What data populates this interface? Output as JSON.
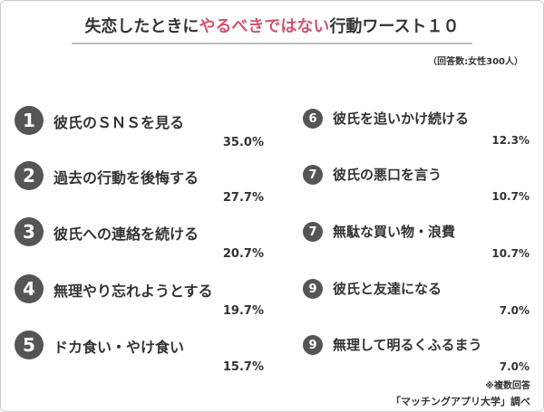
{
  "header": {
    "title_before": "失恋したときに",
    "title_highlight": "やるべきではない",
    "title_after": "行動ワースト１０",
    "subtitle": "（回答数:女性300人）"
  },
  "left": [
    {
      "rank": "1",
      "label": "彼氏のＳＮＳを見る",
      "value": "35.0%"
    },
    {
      "rank": "2",
      "label": "過去の行動を後悔する",
      "value": "27.7%"
    },
    {
      "rank": "3",
      "label": "彼氏への連絡を続ける",
      "value": "20.7%"
    },
    {
      "rank": "4",
      "label": "無理やり忘れようとする",
      "value": "19.7%"
    },
    {
      "rank": "5",
      "label": "ドカ食い・やけ食い",
      "value": "15.7%"
    }
  ],
  "right": [
    {
      "rank": "6",
      "label": "彼氏を追いかけ続ける",
      "value": "12.3%"
    },
    {
      "rank": "7",
      "label": "彼氏の悪口を言う",
      "value": "10.7%"
    },
    {
      "rank": "7",
      "label": "無駄な買い物・浪費",
      "value": "10.7%"
    },
    {
      "rank": "9",
      "label": "彼氏と友達になる",
      "value": "7.0%"
    },
    {
      "rank": "9",
      "label": "無理して明るくふるまう",
      "value": "7.0%"
    }
  ],
  "footer": {
    "note": "※複数回答",
    "source": "「マッチングアプリ大学」調べ"
  }
}
